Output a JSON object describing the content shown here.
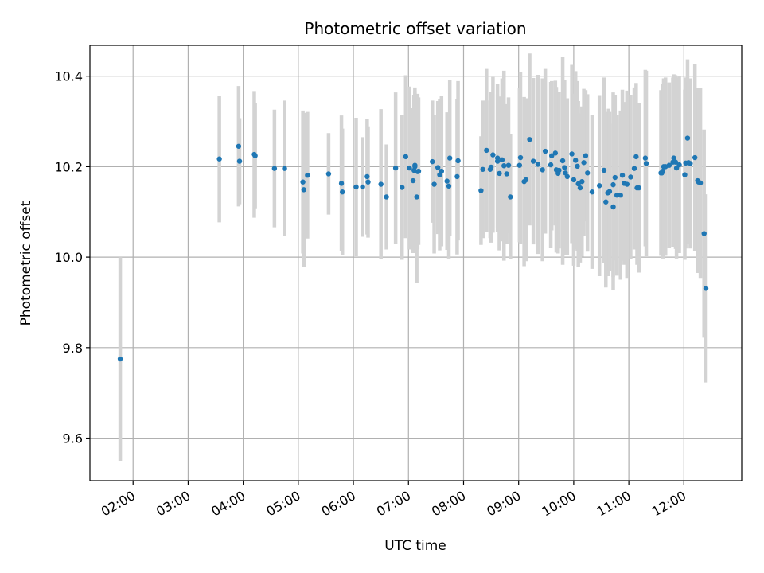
{
  "chart_data": {
    "type": "scatter",
    "title": "Photometric offset variation",
    "xlabel": "UTC time",
    "ylabel": "Photometric offset",
    "xlim": [
      "01:13",
      "13:03"
    ],
    "ylim": [
      9.506,
      10.468
    ],
    "grid": true,
    "x_ticks": [
      "02:00",
      "03:00",
      "04:00",
      "05:00",
      "06:00",
      "07:00",
      "08:00",
      "09:00",
      "10:00",
      "11:00",
      "12:00"
    ],
    "y_ticks": [
      "9.6",
      "9.8",
      "10.0",
      "10.2",
      "10.4"
    ],
    "marker_color": "#1f77b4",
    "errorbar_color": "#d3d3d3",
    "series": [
      {
        "x": [
          "01:46",
          "03:34",
          "03:55",
          "03:56",
          "04:12",
          "04:13",
          "04:34",
          "04:45",
          "05:05",
          "05:06",
          "05:10",
          "05:33",
          "05:47",
          "05:48",
          "06:03",
          "06:10",
          "06:15",
          "06:16",
          "06:30",
          "06:36",
          "06:46",
          "06:53",
          "06:57",
          "07:01",
          "07:05",
          "07:06",
          "07:07",
          "07:07",
          "07:09",
          "07:10",
          "07:11",
          "07:26",
          "07:28",
          "07:32",
          "07:34",
          "07:36",
          "07:42",
          "07:44",
          "07:45",
          "07:53",
          "07:54",
          "08:19",
          "08:21",
          "08:25",
          "08:29",
          "08:30",
          "08:32",
          "08:37",
          "08:37",
          "08:39",
          "08:42",
          "08:44",
          "08:47",
          "08:49",
          "08:51",
          "09:01",
          "09:02",
          "09:06",
          "09:08",
          "09:12",
          "09:16",
          "09:21",
          "09:26",
          "09:29",
          "09:35",
          "09:36",
          "09:40",
          "09:41",
          "09:43",
          "09:44",
          "09:48",
          "09:50",
          "09:51",
          "09:53",
          "09:58",
          "10:00",
          "10:02",
          "10:04",
          "10:05",
          "10:07",
          "10:09",
          "10:11",
          "10:13",
          "10:15",
          "10:20",
          "10:28",
          "10:33",
          "10:35",
          "10:37",
          "10:38",
          "10:39",
          "10:43",
          "10:43",
          "10:45",
          "10:47",
          "10:51",
          "10:53",
          "10:55",
          "10:58",
          "11:02",
          "11:06",
          "11:08",
          "11:09",
          "11:11",
          "11:18",
          "11:19",
          "11:35",
          "11:36",
          "11:37",
          "11:38",
          "11:40",
          "11:44",
          "11:48",
          "11:49",
          "11:51",
          "11:52",
          "11:55",
          "12:01",
          "12:02",
          "12:04",
          "12:05",
          "12:07",
          "12:12",
          "12:15",
          "12:16",
          "12:18",
          "12:22",
          "12:24"
        ],
        "y": [
          9.775,
          10.217,
          10.245,
          10.212,
          10.227,
          10.224,
          10.196,
          10.196,
          10.166,
          10.149,
          10.181,
          10.184,
          10.163,
          10.144,
          10.155,
          10.155,
          10.178,
          10.166,
          10.161,
          10.133,
          10.197,
          10.154,
          10.222,
          10.197,
          10.169,
          10.192,
          10.2,
          10.203,
          10.133,
          10.189,
          10.19,
          10.211,
          10.161,
          10.198,
          10.182,
          10.19,
          10.168,
          10.157,
          10.219,
          10.178,
          10.213,
          10.147,
          10.194,
          10.236,
          10.194,
          10.199,
          10.226,
          10.212,
          10.219,
          10.185,
          10.215,
          10.202,
          10.184,
          10.203,
          10.133,
          10.203,
          10.22,
          10.167,
          10.171,
          10.26,
          10.212,
          10.205,
          10.193,
          10.234,
          10.204,
          10.224,
          10.23,
          10.193,
          10.185,
          10.192,
          10.213,
          10.198,
          10.186,
          10.178,
          10.228,
          10.171,
          10.214,
          10.201,
          10.162,
          10.153,
          10.167,
          10.209,
          10.224,
          10.186,
          10.144,
          10.158,
          10.192,
          10.122,
          10.142,
          10.143,
          10.145,
          10.111,
          10.16,
          10.176,
          10.137,
          10.137,
          10.181,
          10.163,
          10.161,
          10.177,
          10.196,
          10.222,
          10.153,
          10.153,
          10.219,
          10.207,
          10.186,
          10.186,
          10.19,
          10.2,
          10.2,
          10.203,
          10.21,
          10.219,
          10.21,
          10.197,
          10.204,
          10.182,
          10.208,
          10.263,
          10.209,
          10.207,
          10.22,
          10.169,
          10.166,
          10.164,
          10.052,
          9.931
        ],
        "yerr": [
          0.225,
          0.14,
          0.133,
          0.095,
          0.14,
          0.116,
          0.13,
          0.15,
          0.158,
          0.17,
          0.14,
          0.09,
          0.15,
          0.14,
          0.153,
          0.11,
          0.128,
          0.123,
          0.166,
          0.116,
          0.167,
          0.16,
          0.18,
          0.18,
          0.16,
          0.167,
          0.167,
          0.172,
          0.19,
          0.172,
          0.163,
          0.135,
          0.153,
          0.147,
          0.167,
          0.166,
          0.152,
          0.16,
          0.172,
          0.172,
          0.176,
          0.12,
          0.152,
          0.18,
          0.152,
          0.167,
          0.172,
          0.148,
          0.164,
          0.17,
          0.18,
          0.21,
          0.154,
          0.15,
          0.138,
          0.17,
          0.19,
          0.187,
          0.18,
          0.19,
          0.184,
          0.198,
          0.202,
          0.182,
          0.183,
          0.165,
          0.16,
          0.183,
          0.177,
          0.173,
          0.23,
          0.193,
          0.164,
          0.173,
          0.197,
          0.19,
          0.197,
          0.188,
          0.183,
          0.165,
          0.166,
          0.163,
          0.145,
          0.174,
          0.17,
          0.2,
          0.205,
          0.189,
          0.179,
          0.185,
          0.176,
          0.184,
          0.204,
          0.183,
          0.178,
          0.187,
          0.189,
          0.18,
          0.207,
          0.182,
          0.179,
          0.163,
          0.17,
          0.187,
          0.195,
          0.205,
          0.183,
          0.182,
          0.193,
          0.195,
          0.197,
          0.183,
          0.187,
          0.185,
          0.192,
          0.2,
          0.195,
          0.188,
          0.189,
          0.174,
          0.179,
          0.188,
          0.207,
          0.204,
          0.2,
          0.21,
          0.23,
          0.208
        ]
      }
    ]
  }
}
